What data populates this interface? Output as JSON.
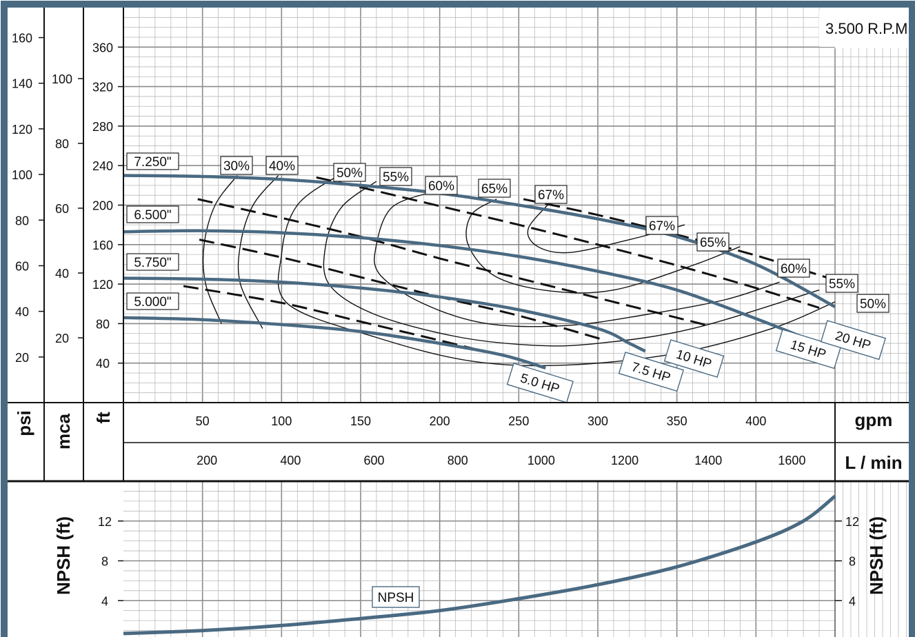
{
  "chart_data": {
    "type": "line",
    "rpm_label": "3.500 R.P.M",
    "units": {
      "psi": "psi",
      "mca": "mca",
      "ft": "ft",
      "gpm": "gpm",
      "lmin": "L / min",
      "npsh_left": "NPSH (ft)",
      "npsh_right": "NPSH (ft)"
    },
    "axes": {
      "head_ft": {
        "range": [
          0,
          400
        ],
        "ticks": [
          40,
          80,
          120,
          160,
          200,
          240,
          280,
          320,
          360
        ]
      },
      "psi_ticks": [
        20,
        40,
        60,
        80,
        100,
        120,
        140,
        160
      ],
      "mca_ticks": [
        20,
        40,
        60,
        80,
        100
      ],
      "gpm": {
        "range": [
          0,
          450
        ],
        "ticks": [
          50,
          100,
          150,
          200,
          250,
          300,
          350,
          400
        ]
      },
      "lmin_ticks": [
        200,
        400,
        600,
        800,
        1000,
        1200,
        1400,
        1600
      ],
      "npsh_ft": {
        "range": [
          0,
          16
        ],
        "ticks": [
          4,
          8,
          12
        ]
      }
    },
    "impeller_curves": [
      {
        "name": "7.250\"",
        "points": [
          [
            0,
            230
          ],
          [
            50,
            229
          ],
          [
            100,
            226
          ],
          [
            150,
            220
          ],
          [
            200,
            212
          ],
          [
            250,
            200
          ],
          [
            300,
            186
          ],
          [
            350,
            168
          ],
          [
            400,
            140
          ],
          [
            450,
            97
          ]
        ]
      },
      {
        "name": "6.500\"",
        "points": [
          [
            0,
            173
          ],
          [
            50,
            174
          ],
          [
            100,
            172
          ],
          [
            150,
            167
          ],
          [
            200,
            159
          ],
          [
            250,
            148
          ],
          [
            300,
            133
          ],
          [
            350,
            114
          ],
          [
            400,
            85
          ],
          [
            430,
            66
          ]
        ]
      },
      {
        "name": "5.750\"",
        "points": [
          [
            0,
            126
          ],
          [
            50,
            125
          ],
          [
            100,
            122
          ],
          [
            150,
            116
          ],
          [
            200,
            107
          ],
          [
            250,
            94
          ],
          [
            300,
            75
          ],
          [
            320,
            60
          ],
          [
            330,
            52
          ]
        ]
      },
      {
        "name": "5.000\"",
        "points": [
          [
            0,
            86
          ],
          [
            50,
            84
          ],
          [
            100,
            79
          ],
          [
            150,
            72
          ],
          [
            200,
            60
          ],
          [
            240,
            48
          ],
          [
            267,
            35
          ]
        ]
      }
    ],
    "efficiency_curves": [
      {
        "name": "30%",
        "points": [
          [
            72,
            230
          ],
          [
            58,
            200
          ],
          [
            51,
            160
          ],
          [
            52,
            120
          ],
          [
            62,
            80
          ]
        ]
      },
      {
        "name": "40%",
        "points": [
          [
            98,
            230
          ],
          [
            82,
            200
          ],
          [
            74,
            160
          ],
          [
            74,
            120
          ],
          [
            88,
            75
          ]
        ]
      },
      {
        "name": "50%",
        "points": [
          [
            138,
            232
          ],
          [
            110,
            200
          ],
          [
            100,
            150
          ],
          [
            104,
            100
          ],
          [
            160,
            66
          ],
          [
            220,
            42
          ],
          [
            280,
            38
          ],
          [
            350,
            50
          ],
          [
            410,
            75
          ],
          [
            450,
            102
          ]
        ]
      },
      {
        "name": "55%",
        "points": [
          [
            160,
            224
          ],
          [
            138,
            198
          ],
          [
            128,
            160
          ],
          [
            130,
            120
          ],
          [
            158,
            90
          ],
          [
            210,
            67
          ],
          [
            260,
            58
          ],
          [
            300,
            60
          ],
          [
            360,
            75
          ],
          [
            440,
            114
          ]
        ]
      },
      {
        "name": "60%",
        "points": [
          [
            197,
            214
          ],
          [
            170,
            198
          ],
          [
            160,
            160
          ],
          [
            162,
            130
          ],
          [
            190,
            100
          ],
          [
            230,
            80
          ],
          [
            280,
            78
          ],
          [
            330,
            89
          ],
          [
            380,
            104
          ],
          [
            415,
            122
          ]
        ]
      },
      {
        "name": "65%",
        "points": [
          [
            236,
            206
          ],
          [
            220,
            190
          ],
          [
            218,
            160
          ],
          [
            235,
            128
          ],
          [
            270,
            113
          ],
          [
            310,
            114
          ],
          [
            360,
            139
          ],
          [
            390,
            158
          ]
        ]
      },
      {
        "name": "67%",
        "points": [
          [
            270,
            203
          ],
          [
            256,
            176
          ],
          [
            262,
            158
          ],
          [
            282,
            152
          ],
          [
            320,
            165
          ],
          [
            355,
            180
          ]
        ]
      }
    ],
    "hp_curves": [
      {
        "name": "5.0 HP",
        "points": [
          [
            38,
            118
          ],
          [
            100,
            101
          ],
          [
            150,
            82
          ],
          [
            200,
            63
          ],
          [
            233,
            50
          ]
        ]
      },
      {
        "name": "7.5 HP",
        "points": [
          [
            48,
            165
          ],
          [
            100,
            147
          ],
          [
            150,
            127
          ],
          [
            200,
            107
          ],
          [
            250,
            88
          ],
          [
            305,
            63
          ]
        ]
      },
      {
        "name": "10 HP",
        "points": [
          [
            47,
            206
          ],
          [
            100,
            187
          ],
          [
            150,
            168
          ],
          [
            200,
            146
          ],
          [
            250,
            126
          ],
          [
            300,
            106
          ],
          [
            370,
            78
          ]
        ]
      },
      {
        "name": "15 HP",
        "points": [
          [
            122,
            228
          ],
          [
            150,
            218
          ],
          [
            200,
            199
          ],
          [
            250,
            180
          ],
          [
            300,
            160
          ],
          [
            350,
            139
          ],
          [
            400,
            116
          ],
          [
            440,
            96
          ]
        ]
      },
      {
        "name": "20 HP",
        "points": [
          [
            253,
            206
          ],
          [
            300,
            190
          ],
          [
            350,
            170
          ],
          [
            400,
            149
          ],
          [
            450,
            124
          ]
        ]
      }
    ],
    "npsh_curve": {
      "name": "NPSH",
      "points": [
        [
          0,
          0.7
        ],
        [
          50,
          1.0
        ],
        [
          100,
          1.5
        ],
        [
          150,
          2.2
        ],
        [
          200,
          3.0
        ],
        [
          250,
          4.2
        ],
        [
          300,
          5.6
        ],
        [
          350,
          7.4
        ],
        [
          400,
          9.9
        ],
        [
          430,
          12.0
        ],
        [
          450,
          14.5
        ]
      ]
    },
    "colors": {
      "pump_curve": "#4a6a82",
      "frame": "#4a6a82",
      "grid": "#b9b9b9"
    }
  }
}
